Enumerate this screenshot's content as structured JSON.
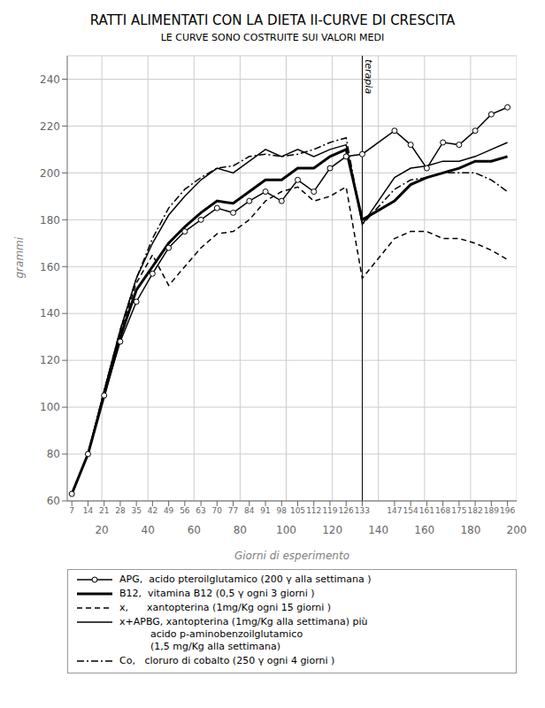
{
  "chart_data": {
    "type": "line",
    "title": "RATTI ALIMENTATI CON LA DIETA II-CURVE DI CRESCITA",
    "subtitle": "LE CURVE SONO COSTRUITE SUI VALORI MEDI",
    "xlabel": "Giorni di esperimento",
    "ylabel": "grammi",
    "x": [
      7,
      14,
      21,
      28,
      35,
      42,
      49,
      56,
      63,
      70,
      77,
      84,
      91,
      98,
      105,
      112,
      119,
      126,
      133,
      147,
      154,
      161,
      168,
      175,
      182,
      189,
      196
    ],
    "xlim": [
      5,
      200
    ],
    "xticks": [
      20,
      40,
      60,
      80,
      100,
      120,
      140,
      160,
      180,
      200
    ],
    "xticks_minor": [
      7,
      14,
      21,
      28,
      35,
      42,
      49,
      56,
      63,
      70,
      77,
      84,
      91,
      98,
      105,
      112,
      119,
      126,
      133,
      147,
      154,
      161,
      168,
      175,
      182,
      189,
      196
    ],
    "ylim": [
      60,
      250
    ],
    "yticks": [
      60,
      80,
      100,
      120,
      140,
      160,
      180,
      200,
      220,
      240
    ],
    "grid": true,
    "legend": "bottom",
    "annotations": [
      {
        "x": 133,
        "text": "terapia"
      }
    ],
    "series": [
      {
        "name": "APG,  acido pteroilglutamico (200 γ alla settimana )",
        "color": "#000000",
        "line_style": "solid",
        "marker": "circle",
        "values": [
          63,
          80,
          105,
          128,
          145,
          157,
          168,
          175,
          180,
          185,
          183,
          188,
          192,
          188,
          197,
          192,
          202,
          207,
          208,
          218,
          212,
          202,
          213,
          212,
          218,
          225,
          228
        ]
      },
      {
        "name": "B12,  vitamina B12 (0,5 γ ogni 3 giorni )",
        "color": "#000000",
        "line_style": "thick",
        "marker": "none",
        "values": [
          63,
          80,
          105,
          130,
          150,
          160,
          170,
          177,
          183,
          188,
          187,
          192,
          197,
          197,
          202,
          202,
          207,
          210,
          180,
          188,
          195,
          198,
          200,
          202,
          205,
          205,
          207
        ]
      },
      {
        "name": "x,      xantopterina (1mg/Kg ogni 15 giorni )",
        "color": "#000000",
        "line_style": "dashed",
        "marker": "none",
        "values": [
          63,
          80,
          107,
          132,
          153,
          165,
          152,
          160,
          168,
          174,
          175,
          180,
          188,
          192,
          194,
          188,
          190,
          194,
          155,
          172,
          175,
          175,
          172,
          172,
          170,
          167,
          163
        ]
      },
      {
        "name": "x+APBG, xantopterina (1mg/Kg alla settimana) più\n          acido p-aminobenzoilglutamico\n          (1,5 mg/Kg alla settimana)",
        "color": "#000000",
        "line_style": "solid",
        "marker": "none",
        "values": [
          63,
          80,
          107,
          133,
          155,
          170,
          182,
          190,
          197,
          202,
          200,
          205,
          210,
          207,
          210,
          207,
          210,
          212,
          178,
          198,
          202,
          203,
          205,
          205,
          207,
          210,
          213
        ]
      },
      {
        "name": "Co,   cloruro di cobalto (250 γ ogni 4 giorni )",
        "color": "#000000",
        "line_style": "dashdot",
        "marker": "none",
        "values": [
          63,
          80,
          107,
          133,
          155,
          172,
          185,
          193,
          198,
          202,
          203,
          207,
          208,
          207,
          208,
          210,
          213,
          215,
          178,
          193,
          197,
          198,
          200,
          200,
          200,
          197,
          192
        ]
      }
    ]
  }
}
